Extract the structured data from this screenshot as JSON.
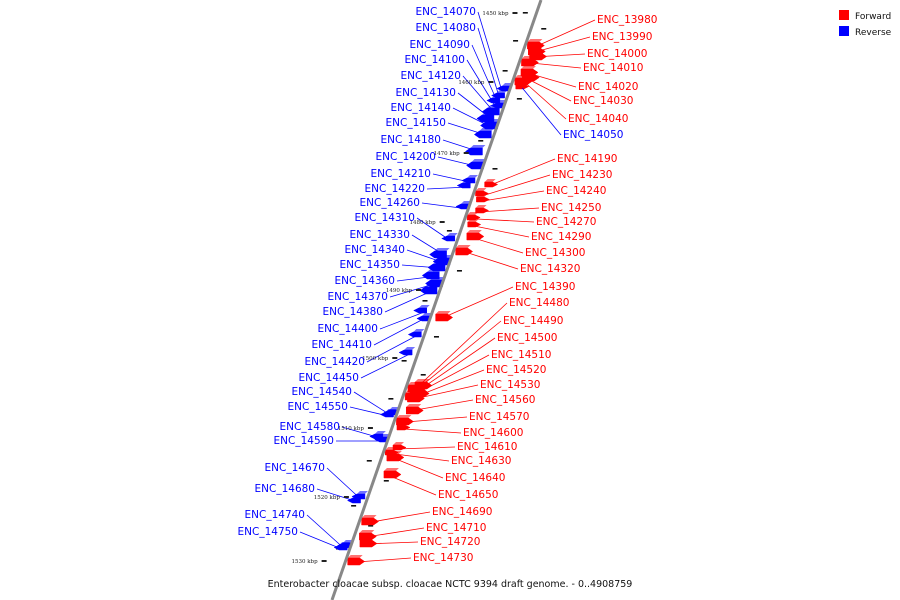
{
  "caption": "Enterobacter cloacae subsp. cloacae NCTC 9394 draft genome. - 0..4908759",
  "legend": [
    {
      "label": "Forward",
      "color": "#ff0000"
    },
    {
      "label": "Reverse",
      "color": "#0000ff"
    }
  ],
  "colors": {
    "forward": "#ff0000",
    "reverse": "#0000ff",
    "axis": "#888888",
    "tick": "#222222"
  },
  "ticks": [
    "1450 kbp",
    "1460 kbp",
    "1470 kbp",
    "1480 kbp",
    "1490 kbp",
    "1500 kbp",
    "1510 kbp",
    "1520 kbp",
    "1530 kbp"
  ],
  "reverse_genes": [
    "ENC_14070",
    "ENC_14080",
    "ENC_14090",
    "ENC_14100",
    "ENC_14120",
    "ENC_14130",
    "ENC_14140",
    "ENC_14150",
    "ENC_14180",
    "ENC_14200",
    "ENC_14210",
    "ENC_14220",
    "ENC_14260",
    "ENC_14310",
    "ENC_14330",
    "ENC_14340",
    "ENC_14350",
    "ENC_14360",
    "ENC_14370",
    "ENC_14380",
    "ENC_14400",
    "ENC_14410",
    "ENC_14420",
    "ENC_14450",
    "ENC_14540",
    "ENC_14550",
    "ENC_14580",
    "ENC_14590",
    "ENC_14670",
    "ENC_14680",
    "ENC_14740",
    "ENC_14750"
  ],
  "forward_genes": [
    "ENC_13980",
    "ENC_13990",
    "ENC_14000",
    "ENC_14010",
    "ENC_14020",
    "ENC_14030",
    "ENC_14040",
    "ENC_14050",
    "ENC_14190",
    "ENC_14230",
    "ENC_14240",
    "ENC_14250",
    "ENC_14270",
    "ENC_14290",
    "ENC_14300",
    "ENC_14320",
    "ENC_14390",
    "ENC_14480",
    "ENC_14490",
    "ENC_14500",
    "ENC_14510",
    "ENC_14520",
    "ENC_14530",
    "ENC_14560",
    "ENC_14570",
    "ENC_14600",
    "ENC_14610",
    "ENC_14630",
    "ENC_14640",
    "ENC_14650",
    "ENC_14690",
    "ENC_14710",
    "ENC_14720",
    "ENC_14730"
  ]
}
